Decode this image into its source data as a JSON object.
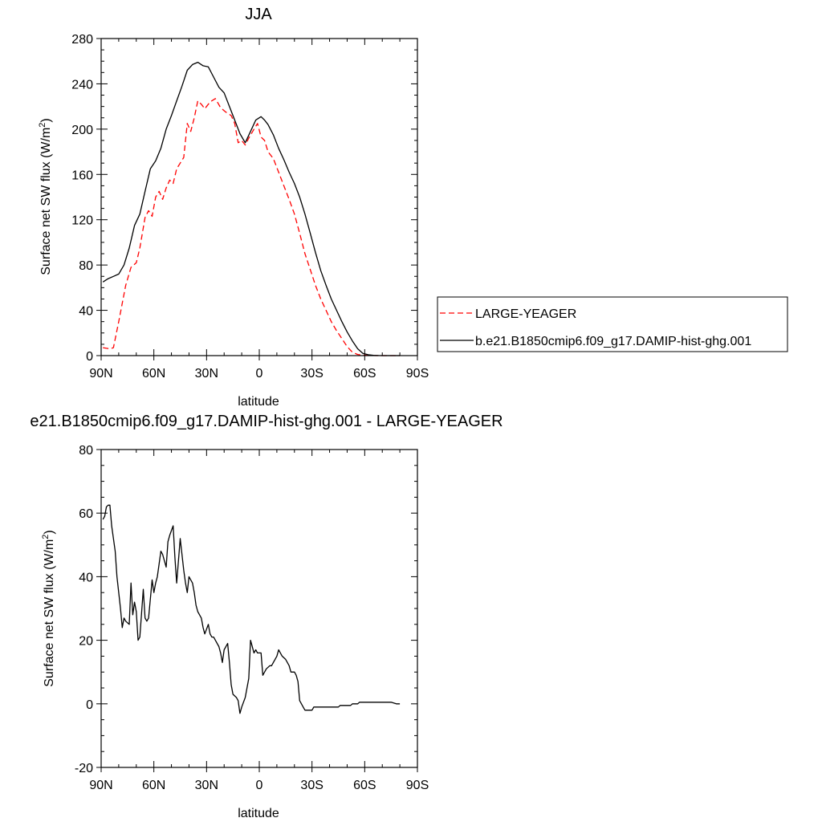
{
  "chart_data": [
    {
      "type": "line",
      "title": "JJA",
      "xlabel": "latitude",
      "ylabel": "Surface net SW flux (W/m",
      "ylabel_sup": "2",
      "ylabel_end": ")",
      "xlim": [
        90,
        -90
      ],
      "ylim": [
        0,
        280
      ],
      "x_ticks": [
        90,
        60,
        30,
        0,
        -30,
        -60,
        -90
      ],
      "x_tick_labels": [
        "90N",
        "60N",
        "30N",
        "0",
        "30S",
        "60S",
        "90S"
      ],
      "y_ticks": [
        0,
        40,
        80,
        120,
        160,
        200,
        240,
        280
      ],
      "y_tick_labels": [
        "0",
        "40",
        "80",
        "120",
        "160",
        "200",
        "240",
        "280"
      ],
      "grid": false,
      "legend_position": "right",
      "series": [
        {
          "name": "LARGE-YEAGER",
          "color": "#ff0000",
          "dash": "dashed",
          "x": [
            89,
            85,
            83,
            80,
            76,
            73,
            70,
            68,
            65,
            63,
            61,
            59,
            57,
            55,
            53,
            51,
            49,
            47,
            45,
            43,
            41,
            39,
            37,
            35,
            33,
            31,
            28,
            25,
            22,
            19,
            16,
            14,
            12,
            10,
            8,
            6,
            3,
            1,
            -1,
            -3,
            -5,
            -8,
            -11,
            -14,
            -17,
            -20,
            -23,
            -26,
            -29,
            -32,
            -35,
            -38,
            -41,
            -44,
            -47,
            -50,
            -53,
            -56,
            -59,
            -62,
            -65,
            -67,
            -70,
            -74,
            -78,
            -80
          ],
          "y": [
            7,
            6,
            7,
            30,
            62,
            78,
            82,
            95,
            122,
            128,
            123,
            140,
            145,
            138,
            148,
            155,
            152,
            165,
            170,
            175,
            205,
            198,
            210,
            225,
            222,
            218,
            224,
            227,
            219,
            215,
            212,
            205,
            188,
            190,
            186,
            192,
            200,
            205,
            193,
            190,
            180,
            174,
            162,
            150,
            138,
            125,
            108,
            90,
            76,
            62,
            50,
            40,
            30,
            22,
            15,
            8,
            3,
            1,
            0.4,
            0.2,
            0.1,
            0,
            0,
            0,
            0,
            0
          ]
        },
        {
          "name": "b.e21.B1850cmip6.f09_g17.DAMIP-hist-ghg.001",
          "color": "#000000",
          "dash": "solid",
          "x": [
            89,
            86,
            83,
            80,
            77,
            74,
            71,
            68,
            65,
            62,
            59,
            56,
            53,
            50,
            47,
            44,
            41,
            38,
            35,
            32,
            29,
            26,
            23,
            20,
            17,
            14,
            11,
            8,
            5,
            2,
            -1,
            -3,
            -5,
            -8,
            -11,
            -14,
            -17,
            -20,
            -23,
            -26,
            -29,
            -32,
            -35,
            -38,
            -41,
            -44,
            -47,
            -50,
            -53,
            -56,
            -59,
            -62,
            -65,
            -68,
            -71,
            -74,
            -77,
            -80
          ],
          "y": [
            65,
            68,
            70,
            72,
            80,
            95,
            115,
            125,
            145,
            165,
            172,
            183,
            200,
            212,
            225,
            238,
            252,
            257,
            259,
            256,
            255,
            246,
            237,
            232,
            220,
            208,
            196,
            188,
            198,
            208,
            211,
            208,
            204,
            195,
            183,
            173,
            162,
            152,
            140,
            125,
            108,
            91,
            75,
            62,
            50,
            40,
            30,
            21,
            13,
            6,
            2,
            0.8,
            0.3,
            0.1,
            0,
            0,
            0,
            0
          ]
        }
      ]
    },
    {
      "type": "line",
      "title": "e21.B1850cmip6.f09_g17.DAMIP-hist-ghg.001 - LARGE-YEAGER",
      "xlabel": "latitude",
      "ylabel": "Surface net SW flux (W/m",
      "ylabel_sup": "2",
      "ylabel_end": ")",
      "xlim": [
        90,
        -90
      ],
      "ylim": [
        -20,
        80
      ],
      "x_ticks": [
        90,
        60,
        30,
        0,
        -30,
        -60,
        -90
      ],
      "x_tick_labels": [
        "90N",
        "60N",
        "30N",
        "0",
        "30S",
        "60S",
        "90S"
      ],
      "y_ticks": [
        -20,
        0,
        20,
        40,
        60,
        80
      ],
      "y_tick_labels": [
        "-20",
        "0",
        "20",
        "40",
        "60",
        "80"
      ],
      "grid": false,
      "series": [
        {
          "color": "#000000",
          "dash": "solid",
          "x": [
            89,
            88,
            87,
            86,
            85,
            84,
            82,
            81,
            79,
            78,
            77,
            76,
            74,
            73,
            72,
            71,
            70,
            69,
            68,
            66,
            65,
            64,
            63,
            61,
            60,
            59,
            58,
            57,
            56,
            55,
            53,
            52,
            51,
            49,
            48,
            47,
            46,
            45,
            43,
            42,
            41,
            40,
            38,
            37,
            36,
            35,
            33,
            32,
            31,
            29,
            28,
            27,
            26,
            25,
            23,
            22,
            21,
            20,
            18,
            17,
            16,
            15,
            13,
            12,
            11,
            10,
            8,
            7,
            6,
            5,
            3,
            2,
            1,
            -1,
            -2,
            -3,
            -4,
            -6,
            -7,
            -8,
            -10,
            -11,
            -12,
            -13,
            -15,
            -16,
            -17,
            -18,
            -20,
            -21,
            -22,
            -23,
            -25,
            -26,
            -27,
            -28,
            -30,
            -31,
            -32,
            -33,
            -35,
            -36,
            -37,
            -38,
            -40,
            -41,
            -42,
            -43,
            -45,
            -46,
            -47,
            -48,
            -50,
            -51,
            -52,
            -53,
            -55,
            -56,
            -57,
            -58,
            -60,
            -61,
            -62,
            -63,
            -65,
            -68,
            -70,
            -73,
            -75,
            -78,
            -80
          ],
          "y": [
            58,
            59,
            62,
            62.5,
            62.5,
            56,
            48,
            40,
            30,
            24,
            27,
            26,
            25,
            38,
            28,
            32,
            29,
            20,
            21,
            36,
            27,
            26,
            27,
            39,
            35,
            38,
            40,
            44,
            48,
            47,
            43,
            51,
            53,
            56,
            46,
            38,
            45,
            52,
            42,
            38,
            35,
            40,
            38,
            35,
            31,
            29,
            27,
            24,
            22,
            25,
            22,
            21,
            21,
            20,
            18,
            16,
            13,
            17,
            19,
            13,
            6,
            3,
            2,
            1,
            -3,
            -1,
            2,
            5,
            8,
            20,
            16,
            17,
            16,
            16,
            9,
            10,
            11,
            12,
            12,
            13,
            15,
            17,
            16,
            15,
            14,
            13,
            12,
            10,
            10,
            9,
            7,
            1,
            -1,
            -2,
            -2,
            -2,
            -2,
            -1,
            -1,
            -1,
            -1,
            -1,
            -1,
            -1,
            -1,
            -1,
            -1,
            -1,
            -1,
            -0.5,
            -0.5,
            -0.5,
            -0.5,
            -0.5,
            -0.5,
            0,
            0,
            0,
            0.5,
            0.5,
            0.5,
            0.5,
            0.5,
            0.5,
            0.5,
            0.5,
            0.5,
            0.5,
            0.5,
            0,
            0
          ]
        }
      ]
    }
  ]
}
